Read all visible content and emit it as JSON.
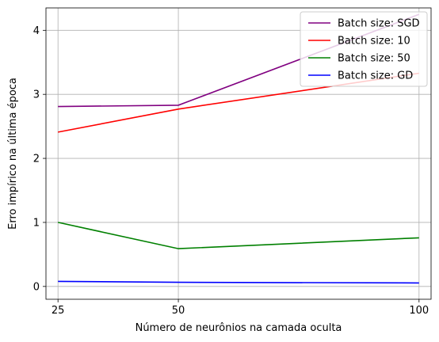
{
  "chart_data": {
    "type": "line",
    "title": "",
    "xlabel": "Número de neurônios na camada oculta",
    "ylabel": "Erro impírico na última época",
    "x": [
      25,
      50,
      100
    ],
    "x_ticks": [
      25,
      50,
      100
    ],
    "x_tick_labels": [
      "25",
      "50",
      "100"
    ],
    "y_ticks": [
      0,
      1,
      2,
      3,
      4
    ],
    "y_tick_labels": [
      "0",
      "1",
      "2",
      "3",
      "4"
    ],
    "xlim": [
      22.5,
      102.5
    ],
    "ylim": [
      -0.2,
      4.35
    ],
    "grid": true,
    "legend_position": "top-right",
    "series": [
      {
        "name": "Batch size: SGD",
        "color": "#800080",
        "values": [
          2.81,
          2.83,
          4.25
        ]
      },
      {
        "name": "Batch size: 10",
        "color": "#ff0000",
        "values": [
          2.41,
          2.77,
          3.33
        ]
      },
      {
        "name": "Batch size: 50",
        "color": "#008000",
        "values": [
          1.0,
          0.59,
          0.76
        ]
      },
      {
        "name": "Batch size: GD",
        "color": "#0000ff",
        "values": [
          0.08,
          0.065,
          0.055
        ]
      }
    ]
  }
}
